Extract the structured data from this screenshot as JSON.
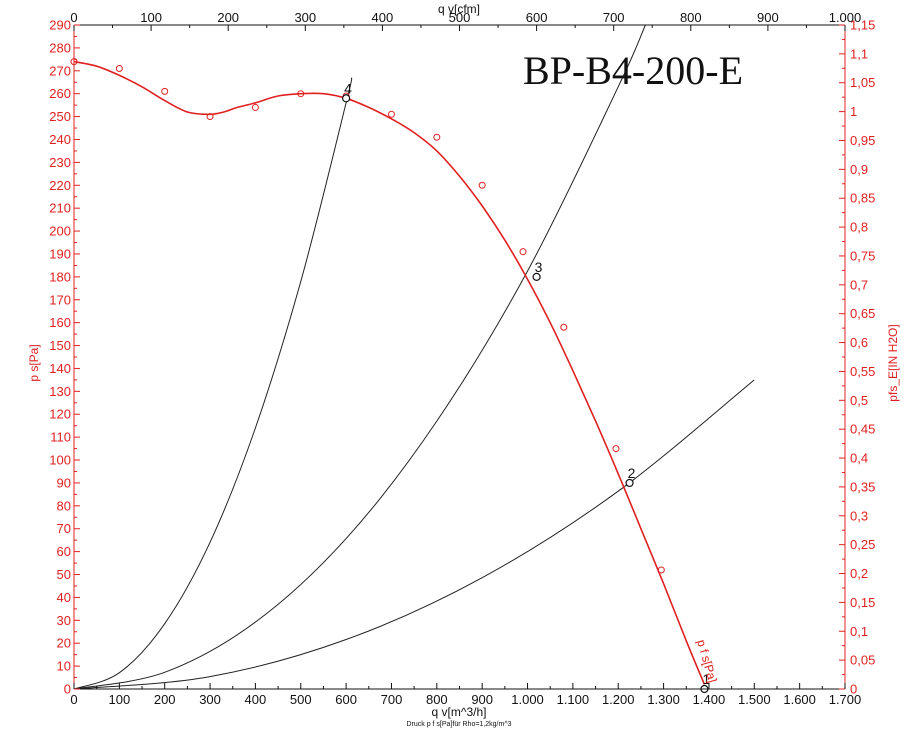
{
  "chart_data": {
    "type": "line",
    "title": "BP-B4-200-E",
    "xlabel": "q v[m^3/h]",
    "x2label": "q v[cfm]",
    "ylabel": "p s[Pa]",
    "y2label": "pfs_E[IN H2O]",
    "caption": "Druck p f s[Pa]für Rho=1,2kg/m^3",
    "curve_label": "p f s[Pa]",
    "xlim": [
      0,
      1700
    ],
    "ylim": [
      0,
      290
    ],
    "x2lim": [
      0,
      1000
    ],
    "y2lim": [
      0,
      1.15
    ],
    "x_tick_labels": [
      "0",
      "100",
      "200",
      "300",
      "400",
      "500",
      "600",
      "700",
      "800",
      "900",
      "1.000",
      "1.100",
      "1.200",
      "1.300",
      "1.400",
      "1.500",
      "1.600",
      "1.700"
    ],
    "x2_tick_labels": [
      "0",
      "100",
      "200",
      "300",
      "400",
      "500",
      "600",
      "700",
      "800",
      "900",
      "1.000"
    ],
    "y_tick_labels": [
      "0",
      "10",
      "20",
      "30",
      "40",
      "50",
      "60",
      "70",
      "80",
      "90",
      "100",
      "110",
      "120",
      "130",
      "140",
      "150",
      "160",
      "170",
      "180",
      "190",
      "200",
      "210",
      "220",
      "230",
      "240",
      "250",
      "260",
      "270",
      "280",
      "290"
    ],
    "y2_tick_labels": [
      "0",
      "0,05",
      "0,1",
      "0,15",
      "0,2",
      "0,25",
      "0,3",
      "0,35",
      "0,4",
      "0,45",
      "0,5",
      "0,55",
      "0,6",
      "0,65",
      "0,7",
      "0,75",
      "0,8",
      "0,85",
      "0,9",
      "0,95",
      "1",
      "1,05",
      "1,1",
      "1,15"
    ],
    "grid": false,
    "fan_curve": {
      "x": [
        0,
        50,
        100,
        150,
        200,
        250,
        300,
        330,
        360,
        400,
        450,
        500,
        550,
        600,
        650,
        700,
        750,
        800,
        850,
        900,
        950,
        1000,
        1050,
        1100,
        1150,
        1200,
        1250,
        1300,
        1350,
        1390
      ],
      "y": [
        274,
        272,
        268,
        263,
        257,
        252,
        251,
        252,
        254,
        256,
        259,
        260,
        260,
        258,
        254,
        249,
        243,
        235,
        224,
        211,
        196,
        179,
        160,
        139,
        117,
        94,
        70,
        46,
        21,
        2
      ],
      "markers": {
        "x": [
          0,
          100,
          200,
          300,
          400,
          500,
          600,
          700,
          800,
          900,
          990,
          1080,
          1195,
          1295
        ],
        "y": [
          274,
          271,
          261,
          250,
          254,
          260,
          259,
          251,
          241,
          220,
          191,
          158,
          105,
          52
        ]
      }
    },
    "system_curves": [
      {
        "x": [
          0,
          100,
          200,
          300,
          400,
          500,
          600,
          612
        ],
        "y": [
          0,
          7.1,
          28.5,
          64.1,
          114,
          178,
          256,
          267
        ]
      },
      {
        "x": [
          0,
          200,
          400,
          600,
          800,
          1000,
          1200,
          1260
        ],
        "y": [
          0,
          7.3,
          29.2,
          65.7,
          117,
          182.5,
          263,
          290
        ]
      },
      {
        "x": [
          0,
          300,
          600,
          900,
          1200,
          1500
        ],
        "y": [
          0,
          5.4,
          21.6,
          48.6,
          86.4,
          135
        ]
      }
    ],
    "operating_points": [
      {
        "label": "1",
        "x": 1390,
        "y": 0
      },
      {
        "label": "2",
        "x": 1225,
        "y": 90
      },
      {
        "label": "3",
        "x": 1020,
        "y": 180
      },
      {
        "label": "4",
        "x": 600,
        "y": 258
      }
    ]
  }
}
